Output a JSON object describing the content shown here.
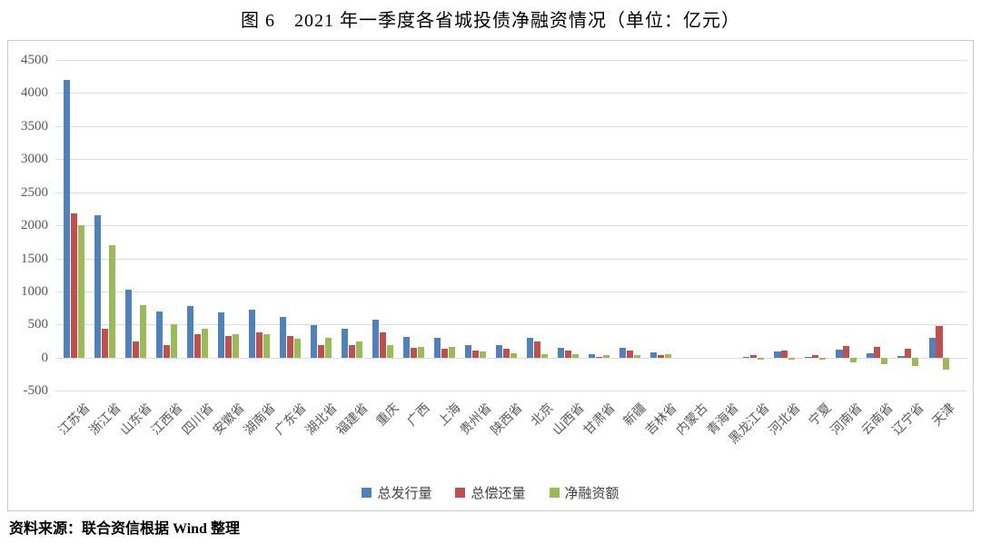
{
  "title": "图 6　2021 年一季度各省城投债净融资情况（单位：亿元）",
  "source": "资料来源：联合资信根据 Wind 整理",
  "chart_data": {
    "type": "bar",
    "unit": "亿元",
    "title": "图 6　2021 年一季度各省城投债净融资情况（单位：亿元）",
    "ylim": [
      -500,
      4500
    ],
    "ytick_step": 500,
    "grid": true,
    "legend_position": "bottom",
    "categories": [
      "江苏省",
      "浙江省",
      "山东省",
      "江西省",
      "四川省",
      "安徽省",
      "湖南省",
      "广东省",
      "湖北省",
      "福建省",
      "重庆",
      "广西",
      "上海",
      "贵州省",
      "陕西省",
      "北京",
      "山西省",
      "甘肃省",
      "新疆",
      "吉林省",
      "内蒙古",
      "青海省",
      "黑龙江省",
      "河北省",
      "宁夏",
      "河南省",
      "云南省",
      "辽宁省",
      "天津"
    ],
    "series": [
      {
        "key": "issuance",
        "name": "总发行量",
        "color": "#4F81BD",
        "values": [
          4200,
          2150,
          1030,
          700,
          780,
          680,
          730,
          620,
          490,
          430,
          570,
          310,
          300,
          190,
          190,
          300,
          150,
          50,
          150,
          85,
          0,
          0,
          10,
          90,
          10,
          115,
          65,
          25,
          300
        ]
      },
      {
        "key": "repayment",
        "name": "总偿还量",
        "color": "#C0504D",
        "values": [
          2180,
          440,
          240,
          190,
          350,
          320,
          380,
          330,
          190,
          190,
          380,
          150,
          140,
          100,
          130,
          250,
          100,
          10,
          110,
          40,
          0,
          0,
          35,
          110,
          35,
          180,
          155,
          140,
          480
        ]
      },
      {
        "key": "net-financing",
        "name": "净融资额",
        "color": "#9BBB59",
        "values": [
          2000,
          1700,
          790,
          510,
          430,
          360,
          350,
          290,
          300,
          240,
          190,
          160,
          160,
          90,
          60,
          50,
          50,
          40,
          40,
          45,
          0,
          0,
          -25,
          -20,
          -25,
          -65,
          -90,
          -115,
          -180
        ]
      }
    ]
  }
}
